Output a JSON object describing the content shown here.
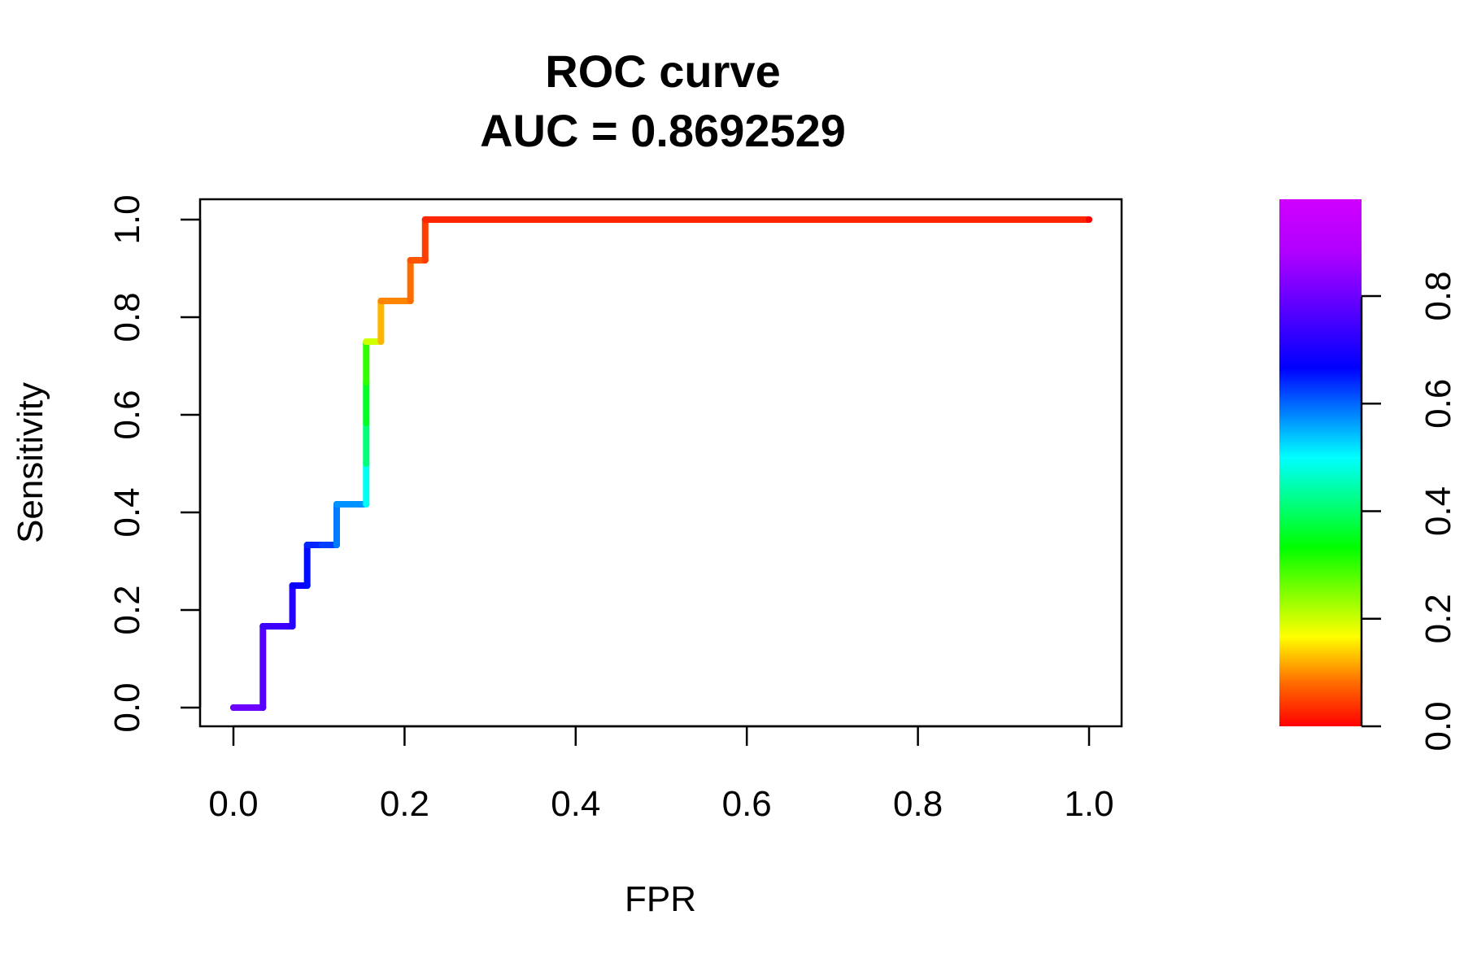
{
  "chart_data": {
    "type": "line",
    "title": "ROC curve",
    "subtitle": "AUC = 0.8692529",
    "xlabel": "FPR",
    "ylabel": "Sensitivity",
    "xlim": [
      0,
      1
    ],
    "ylim": [
      0,
      1
    ],
    "x_ticks": [
      "0.0",
      "0.2",
      "0.4",
      "0.6",
      "0.8",
      "1.0"
    ],
    "y_ticks": [
      "0.0",
      "0.2",
      "0.4",
      "0.6",
      "0.8",
      "1.0"
    ],
    "grid": false,
    "series": [
      {
        "x": [
          0.0,
          0.0345,
          0.0345,
          0.069,
          0.069,
          0.0862,
          0.0862,
          0.1034,
          0.1207,
          0.1207,
          0.1552,
          0.1552,
          0.1552,
          0.1552,
          0.1552,
          0.1724,
          0.1724,
          0.2069,
          0.2069,
          0.2241,
          0.2241,
          1.0
        ],
        "y": [
          0.0,
          0.0,
          0.1667,
          0.1667,
          0.25,
          0.25,
          0.3333,
          0.3333,
          0.3333,
          0.4167,
          0.4167,
          0.5,
          0.5833,
          0.6667,
          0.75,
          0.75,
          0.8333,
          0.8333,
          0.9167,
          0.9167,
          1.0,
          1.0
        ],
        "threshold": [
          0.93,
          0.91,
          0.89,
          0.87,
          0.85,
          0.83,
          0.81,
          0.79,
          0.74,
          0.72,
          0.62,
          0.52,
          0.45,
          0.38,
          0.25,
          0.15,
          0.11,
          0.09,
          0.07,
          0.05,
          0.03,
          0.0
        ]
      }
    ],
    "colorbar": {
      "range": [
        0,
        0.98
      ],
      "ticks": [
        "0.0",
        "0.2",
        "0.4",
        "0.6",
        "0.8"
      ],
      "colormap": "rainbow (red → yellow → green → cyan → blue → magenta)"
    }
  }
}
